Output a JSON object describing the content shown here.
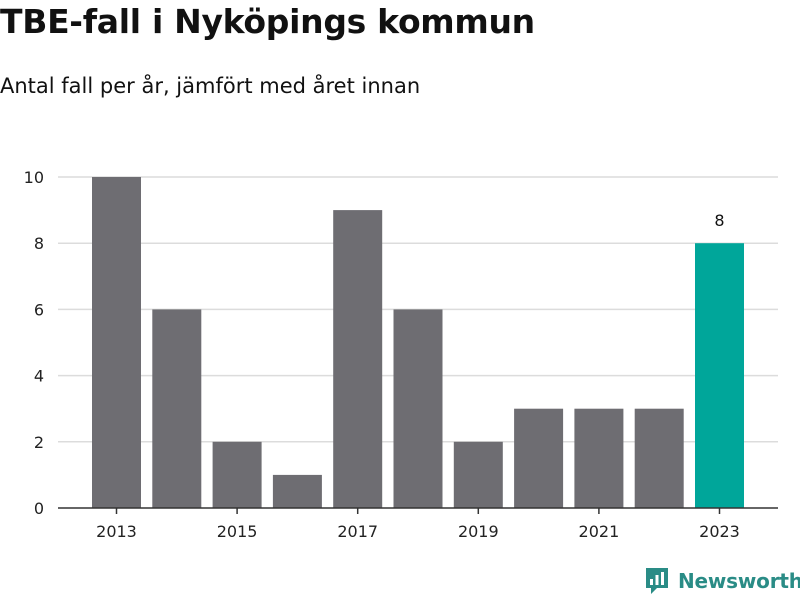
{
  "header": {
    "title": "TBE-fall i Nyköpings kommun",
    "subtitle": "Antal fall per år, jämfört med året innan"
  },
  "brand": {
    "name": "Newsworthy",
    "color": "#2a8c86"
  },
  "colors": {
    "bar": "#6e6d72",
    "highlight": "#00a69a",
    "grid": "#dcdcdc",
    "axis": "#333333"
  },
  "chart_data": {
    "type": "bar",
    "title": "TBE-fall i Nyköpings kommun",
    "subtitle": "Antal fall per år, jämfört med året innan",
    "xlabel": "",
    "ylabel": "",
    "categories": [
      "2013",
      "2014",
      "2015",
      "2016",
      "2017",
      "2018",
      "2019",
      "2020",
      "2021",
      "2022",
      "2023"
    ],
    "values": [
      10,
      6,
      2,
      1,
      9,
      6,
      2,
      3,
      3,
      3,
      8
    ],
    "highlight_index": 10,
    "highlight_label": "8",
    "ylim": [
      0,
      10
    ],
    "yticks": [
      "0",
      "2",
      "4",
      "6",
      "8",
      "10"
    ],
    "xticks": [
      "2013",
      "2015",
      "2017",
      "2019",
      "2021",
      "2023"
    ],
    "grid": true,
    "legend": "none"
  }
}
